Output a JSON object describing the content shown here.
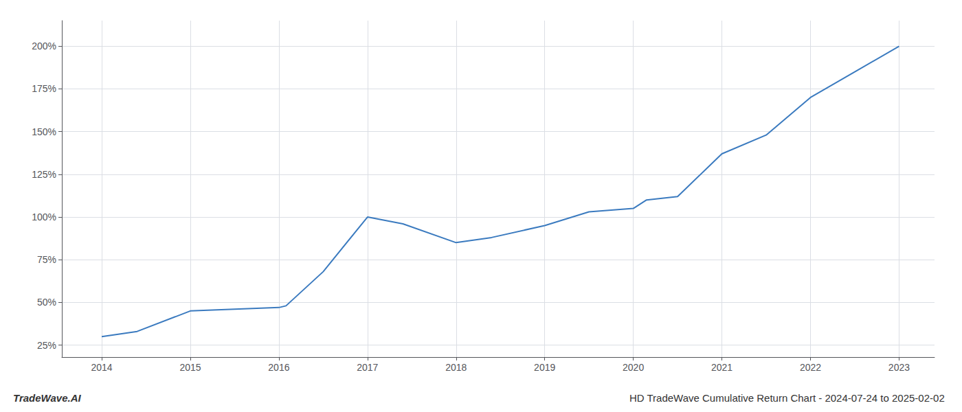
{
  "chart_data": {
    "type": "line",
    "title": "HD TradeWave Cumulative Return Chart - 2024-07-24 to 2025-02-02",
    "annotations": [
      "TradeWave.AI"
    ],
    "x": [
      2014,
      2014.4,
      2015,
      2015.5,
      2016,
      2016.08,
      2016.5,
      2017,
      2017.4,
      2018,
      2018.4,
      2019,
      2019.5,
      2020,
      2020.15,
      2020.5,
      2021,
      2021.5,
      2022,
      2022.5,
      2023
    ],
    "values": [
      30,
      33,
      45,
      46,
      47,
      48,
      68,
      100,
      96,
      85,
      88,
      95,
      103,
      105,
      110,
      112,
      137,
      148,
      170,
      185,
      200
    ],
    "color": "#3a7abf",
    "xlim": [
      2013.55,
      2023.4
    ],
    "xticks": [
      2014,
      2015,
      2016,
      2017,
      2018,
      2019,
      2020,
      2021,
      2022,
      2023
    ],
    "ylim": [
      18,
      215
    ],
    "yticks": [
      {
        "value": 25,
        "label": "25%"
      },
      {
        "value": 50,
        "label": "50%"
      },
      {
        "value": 75,
        "label": "75%"
      },
      {
        "value": 100,
        "label": "100%"
      },
      {
        "value": 125,
        "label": "125%"
      },
      {
        "value": 150,
        "label": "150%"
      },
      {
        "value": 175,
        "label": "175%"
      },
      {
        "value": 200,
        "label": "200%"
      }
    ],
    "grid": true
  }
}
